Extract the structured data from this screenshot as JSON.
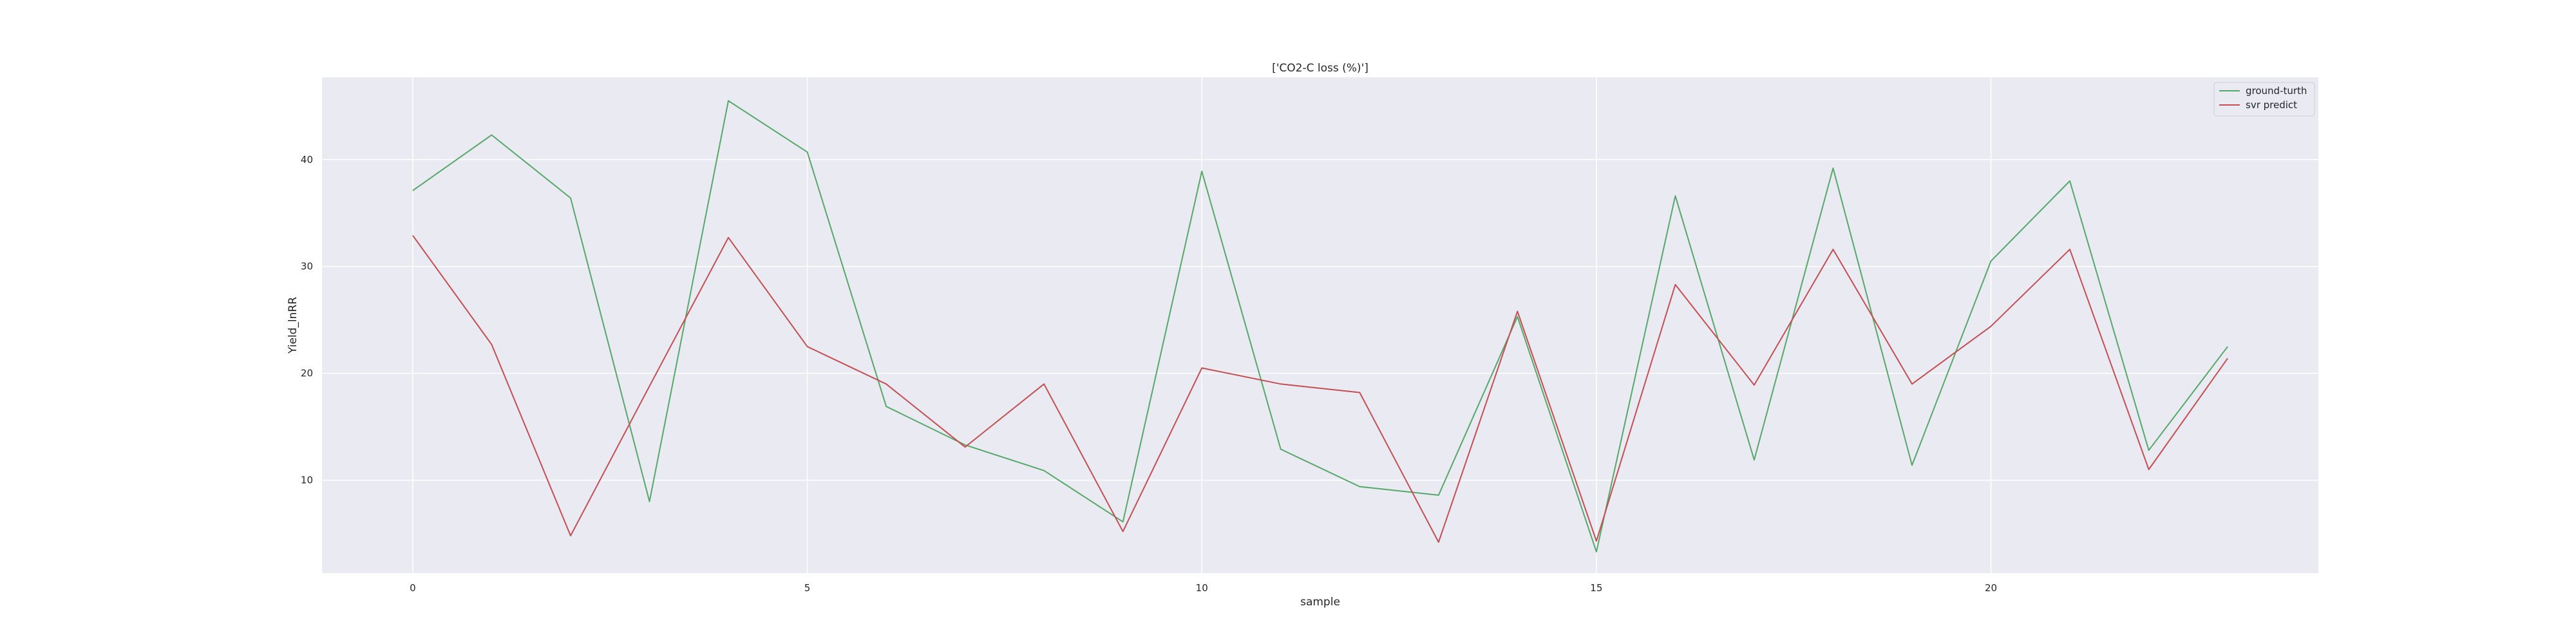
{
  "chart_data": {
    "type": "line",
    "title": "['CO2-C loss (%)']",
    "xlabel": "sample",
    "ylabel": "Yield_lnRR",
    "x": [
      0,
      1,
      2,
      3,
      4,
      5,
      6,
      7,
      8,
      9,
      10,
      11,
      12,
      13,
      14,
      15,
      16,
      17,
      18,
      19,
      20,
      21,
      22,
      23
    ],
    "xlim": [
      -1.15,
      24.15
    ],
    "ylim": [
      1.3,
      47.7
    ],
    "xticks": [
      0,
      5,
      10,
      15,
      20
    ],
    "yticks": [
      10,
      20,
      30,
      40
    ],
    "grid": true,
    "legend_position": "upper right",
    "background_color": "#eaeaf2",
    "series": [
      {
        "name": "ground-turth",
        "color": "#55a868",
        "values": [
          37.1,
          42.3,
          36.4,
          8.0,
          45.5,
          40.7,
          16.9,
          13.3,
          10.9,
          6.1,
          38.9,
          12.9,
          9.4,
          8.6,
          25.3,
          3.3,
          36.6,
          11.9,
          39.2,
          11.4,
          30.5,
          38.0,
          12.8,
          22.5
        ]
      },
      {
        "name": "svr predict",
        "color": "#c44e52",
        "values": [
          32.9,
          22.7,
          4.8,
          18.8,
          32.7,
          22.5,
          19.0,
          13.1,
          19.0,
          5.2,
          20.5,
          19.0,
          18.2,
          4.2,
          25.8,
          4.3,
          28.3,
          18.9,
          31.6,
          19.0,
          24.4,
          31.6,
          11.0,
          21.4
        ]
      }
    ]
  }
}
